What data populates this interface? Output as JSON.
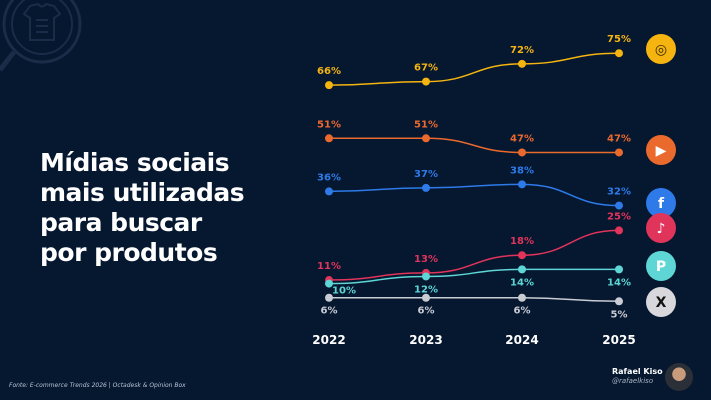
{
  "title_lines": [
    "Mídias sociais",
    "mais utilizadas",
    "para buscar",
    "por produtos"
  ],
  "source": "Fonte: E-commerce Trends 2026 | Octadesk & Opinion Box",
  "author": {
    "name": "Rafael Kiso",
    "handle": "@rafaelkiso"
  },
  "chart_data": {
    "type": "line",
    "title": "Mídias sociais mais utilizadas para buscar por produtos",
    "x": [
      "2022",
      "2023",
      "2024",
      "2025"
    ],
    "ylim": [
      0,
      80
    ],
    "grid": false,
    "series": [
      {
        "name": "Instagram",
        "icon": "instagram-icon",
        "color": "#f5b40f",
        "values": [
          66,
          67,
          72,
          75
        ],
        "labels": [
          "66%",
          "67%",
          "72%",
          "75%"
        ],
        "label_pos": "above"
      },
      {
        "name": "YouTube",
        "icon": "youtube-icon",
        "color": "#ea6a2e",
        "values": [
          51,
          51,
          47,
          47
        ],
        "labels": [
          "51%",
          "51%",
          "47%",
          "47%"
        ],
        "label_pos": "above"
      },
      {
        "name": "Facebook",
        "icon": "facebook-icon",
        "color": "#2d7ae8",
        "values": [
          36,
          37,
          38,
          32
        ],
        "labels": [
          "36%",
          "37%",
          "38%",
          "32%"
        ],
        "label_pos": "above"
      },
      {
        "name": "TikTok",
        "icon": "tiktok-icon",
        "color": "#e0345a",
        "values": [
          11,
          13,
          18,
          25
        ],
        "labels": [
          "11%",
          "13%",
          "18%",
          "25%"
        ],
        "label_pos": "above"
      },
      {
        "name": "Pinterest",
        "icon": "pinterest-icon",
        "color": "#5ed6d6",
        "values": [
          10,
          12,
          14,
          14
        ],
        "labels": [
          "10%",
          "12%",
          "14%",
          "14%"
        ],
        "label_pos": "below"
      },
      {
        "name": "X",
        "icon": "x-icon",
        "color": "#c9ccd3",
        "values": [
          6,
          6,
          6,
          5
        ],
        "labels": [
          "6%",
          "6%",
          "6%",
          "5%"
        ],
        "label_pos": "below"
      }
    ]
  }
}
